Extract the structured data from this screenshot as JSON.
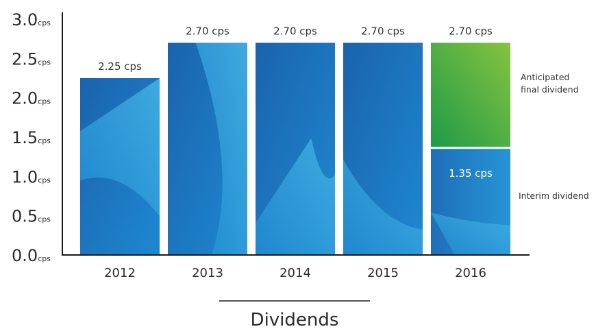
{
  "chart_data": {
    "type": "bar",
    "title": "Dividends",
    "unit": "cps",
    "categories": [
      "2012",
      "2013",
      "2014",
      "2015",
      "2016"
    ],
    "y_ticks": [
      "3.0",
      "2.5",
      "2.0",
      "1.5",
      "1.0",
      "0.5",
      "0.0"
    ],
    "ylim": [
      0,
      3.0
    ],
    "values": [
      2.25,
      2.7,
      2.7,
      2.7,
      2.7
    ],
    "bar_labels": [
      "2.25 cps",
      "2.70 cps",
      "2.70 cps",
      "2.70 cps",
      "2.70 cps"
    ],
    "stack_2016": {
      "interim_value": 1.35,
      "interim_label": "1.35 cps",
      "final_value": 1.35
    },
    "legend": {
      "final": "Anticipated final dividend",
      "final_lines": [
        "Anticipated",
        "final dividend"
      ],
      "interim": "Interim dividend"
    },
    "colors": {
      "blue_dark": "#1a63ad",
      "blue_mid": "#1e88d0",
      "blue_light": "#40aee2",
      "green_dark": "#1f9a48",
      "green_light": "#86c340",
      "axis": "#1a1a1a"
    },
    "grid": false
  }
}
